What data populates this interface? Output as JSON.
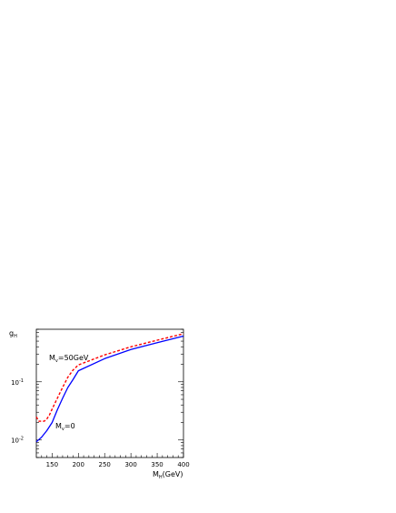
{
  "chart_data": {
    "type": "line",
    "xlabel": {
      "main": "M",
      "sub": "H",
      "unit": "(GeV)"
    },
    "ylabel": {
      "main": "g",
      "sub": "H"
    },
    "xlim": [
      120,
      400
    ],
    "ylim": [
      0.005,
      0.8
    ],
    "yscale": "log",
    "x_ticks": [
      150,
      200,
      250,
      300,
      350,
      400
    ],
    "y_ticks": [
      {
        "value": 0.1,
        "base": "10",
        "exp": "-1"
      },
      {
        "value": 0.01,
        "base": "10",
        "exp": "-2"
      }
    ],
    "grid": false,
    "series": [
      {
        "name": "M_v=50GeV",
        "style": "dashed",
        "color": "#ff0000",
        "x": [
          120,
          125,
          130,
          135,
          140,
          145,
          150,
          160,
          170,
          180,
          190,
          200,
          250,
          300,
          350,
          400
        ],
        "y": [
          0.025,
          0.021,
          0.021,
          0.021,
          0.023,
          0.027,
          0.034,
          0.052,
          0.08,
          0.12,
          0.16,
          0.195,
          0.29,
          0.4,
          0.52,
          0.67
        ]
      },
      {
        "name": "M_v=0",
        "style": "solid",
        "color": "#0000ff",
        "x": [
          120,
          125,
          130,
          140,
          150,
          160,
          170,
          180,
          190,
          200,
          250,
          300,
          350,
          400
        ],
        "y": [
          0.0093,
          0.0102,
          0.0112,
          0.0145,
          0.02,
          0.033,
          0.052,
          0.08,
          0.11,
          0.155,
          0.25,
          0.36,
          0.47,
          0.61
        ]
      }
    ],
    "annotations": [
      {
        "main": "M",
        "sub": "v",
        "rest": "=50GeV",
        "series": "M_v=50GeV"
      },
      {
        "main": "M",
        "sub": "v",
        "rest": "=0",
        "series": "M_v=0"
      }
    ],
    "colors": {
      "axis": "#000000",
      "background": "#ffffff"
    }
  }
}
